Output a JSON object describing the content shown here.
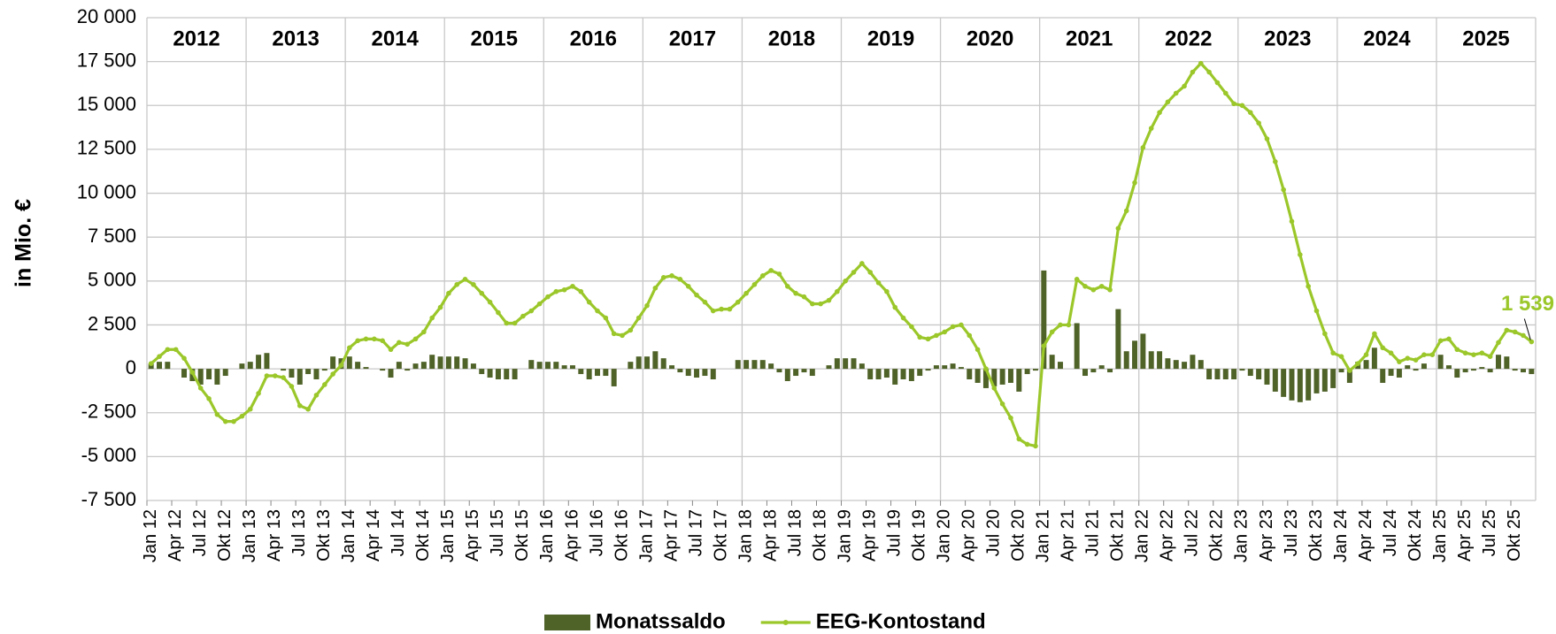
{
  "chart_data": {
    "type": "combo",
    "y_axis_label": "in Mio. €",
    "year_labels": [
      "2012",
      "2013",
      "2014",
      "2015",
      "2016",
      "2017",
      "2018",
      "2019",
      "2020",
      "2021",
      "2022",
      "2023",
      "2024",
      "2025"
    ],
    "categories": [
      "Jan 12",
      null,
      null,
      "Apr 12",
      null,
      null,
      "Jul 12",
      null,
      null,
      "Okt 12",
      null,
      null,
      "Jan 13",
      null,
      null,
      "Apr 13",
      null,
      null,
      "Jul 13",
      null,
      null,
      "Okt 13",
      null,
      null,
      "Jan 14",
      null,
      null,
      "Apr 14",
      null,
      null,
      "Jul 14",
      null,
      null,
      "Okt 14",
      null,
      null,
      "Jan 15",
      null,
      null,
      "Apr 15",
      null,
      null,
      "Jul 15",
      null,
      null,
      "Okt 15",
      null,
      null,
      "Jan 16",
      null,
      null,
      "Apr 16",
      null,
      null,
      "Jul 16",
      null,
      null,
      "Okt 16",
      null,
      null,
      "Jan 17",
      null,
      null,
      "Apr 17",
      null,
      null,
      "Jul 17",
      null,
      null,
      "Okt 17",
      null,
      null,
      "Jan 18",
      null,
      null,
      "Apr 18",
      null,
      null,
      "Jul 18",
      null,
      null,
      "Okt 18",
      null,
      null,
      "Jan 19",
      null,
      null,
      "Apr 19",
      null,
      null,
      "Jul 19",
      null,
      null,
      "Okt 19",
      null,
      null,
      "Jan 20",
      null,
      null,
      "Apr 20",
      null,
      null,
      "Jul 20",
      null,
      null,
      "Okt 20",
      null,
      null,
      "Jan 21",
      null,
      null,
      "Apr 21",
      null,
      null,
      "Jul 21",
      null,
      null,
      "Okt 21",
      null,
      null,
      "Jan 22",
      null,
      null,
      "Apr 22",
      null,
      null,
      "Jul 22",
      null,
      null,
      "Okt 22",
      null,
      null,
      "Jan 23",
      null,
      null,
      "Apr 23",
      null,
      null,
      "Jul 23",
      null,
      null,
      "Okt 23",
      null,
      null,
      "Jan 24",
      null,
      null,
      "Apr 24",
      null,
      null,
      "Jul 24",
      null,
      null,
      "Okt 24",
      null,
      null,
      "Jan 25",
      null,
      null,
      "Apr 25",
      null,
      null,
      "Jul 25",
      null,
      null,
      "Okt 25",
      null,
      null
    ],
    "series": [
      {
        "name": "Monatssaldo",
        "type": "bar",
        "color": "#4f6228",
        "values": [
          300,
          400,
          400,
          0,
          -500,
          -700,
          -900,
          -600,
          -900,
          -400,
          0,
          300,
          400,
          800,
          900,
          0,
          -100,
          -500,
          -900,
          -300,
          -600,
          -100,
          700,
          600,
          700,
          400,
          100,
          0,
          -100,
          -500,
          400,
          -100,
          300,
          400,
          800,
          700,
          700,
          700,
          600,
          300,
          -300,
          -500,
          -600,
          -600,
          -600,
          0,
          500,
          400,
          400,
          400,
          200,
          200,
          -300,
          -600,
          -400,
          -400,
          -1000,
          0,
          400,
          700,
          700,
          1000,
          600,
          200,
          -200,
          -400,
          -500,
          -400,
          -600,
          0,
          0,
          500,
          500,
          500,
          500,
          300,
          -200,
          -700,
          -400,
          -200,
          -400,
          0,
          200,
          600,
          600,
          600,
          300,
          -600,
          -600,
          -500,
          -900,
          -600,
          -700,
          -400,
          -100,
          200,
          200,
          300,
          100,
          -600,
          -800,
          -1100,
          -1000,
          -900,
          -800,
          -1300,
          -300,
          -100,
          5600,
          800,
          400,
          0,
          2600,
          -400,
          -200,
          200,
          -200,
          3400,
          1000,
          1600,
          2000,
          1000,
          1000,
          600,
          500,
          400,
          800,
          500,
          -600,
          -600,
          -600,
          -600,
          -100,
          -400,
          -600,
          -900,
          -1300,
          -1600,
          -1800,
          -1900,
          -1800,
          -1400,
          -1300,
          -1100,
          -200,
          -800,
          400,
          500,
          1200,
          -800,
          -400,
          -500,
          200,
          -100,
          300,
          0,
          800,
          200,
          -500,
          -200,
          -100,
          100,
          -200,
          800,
          700,
          -100,
          -200,
          -300
        ]
      },
      {
        "name": "EEG-Kontostand",
        "type": "line",
        "color": "#9bc72a",
        "values": [
          300,
          700,
          1100,
          1100,
          600,
          -200,
          -1100,
          -1700,
          -2600,
          -3000,
          -3000,
          -2700,
          -2300,
          -1400,
          -400,
          -400,
          -500,
          -1000,
          -2100,
          -2300,
          -1500,
          -900,
          -300,
          200,
          1200,
          1600,
          1700,
          1700,
          1600,
          1100,
          1500,
          1400,
          1700,
          2100,
          2900,
          3500,
          4300,
          4800,
          5100,
          4800,
          4300,
          3800,
          3200,
          2600,
          2600,
          3000,
          3300,
          3700,
          4100,
          4400,
          4500,
          4700,
          4400,
          3800,
          3300,
          2900,
          2000,
          1900,
          2200,
          2900,
          3600,
          4600,
          5200,
          5300,
          5100,
          4700,
          4200,
          3800,
          3300,
          3400,
          3400,
          3800,
          4300,
          4800,
          5300,
          5600,
          5400,
          4700,
          4300,
          4100,
          3700,
          3700,
          3900,
          4400,
          5000,
          5500,
          6000,
          5500,
          4900,
          4400,
          3500,
          2900,
          2400,
          1800,
          1700,
          1900,
          2100,
          2400,
          2500,
          1900,
          1100,
          0,
          -1100,
          -2000,
          -2800,
          -4000,
          -4300,
          -4400,
          1300,
          2100,
          2500,
          2500,
          5100,
          4700,
          4500,
          4700,
          4500,
          8000,
          9000,
          10600,
          12600,
          13700,
          14600,
          15200,
          15700,
          16100,
          16900,
          17400,
          16900,
          16300,
          15700,
          15100,
          15000,
          14600,
          14000,
          13100,
          11800,
          10200,
          8400,
          6500,
          4700,
          3300,
          2000,
          900,
          700,
          -100,
          300,
          800,
          2000,
          1200,
          900,
          400,
          600,
          500,
          800,
          800,
          1600,
          1700,
          1100,
          900,
          800,
          900,
          700,
          1500,
          2200,
          2100,
          1900,
          1539
        ],
        "value_labels": [
          null,
          null,
          null,
          null,
          null,
          null,
          null,
          null,
          null,
          null,
          null,
          null,
          null,
          null,
          null,
          null,
          null,
          null,
          null,
          null,
          null,
          null,
          null,
          null,
          null,
          null,
          null,
          null,
          null,
          null,
          null,
          null,
          null,
          null,
          null,
          null,
          null,
          null,
          null,
          null,
          null,
          null,
          null,
          null,
          null,
          null,
          null,
          null,
          null,
          null,
          null,
          null,
          null,
          null,
          null,
          null,
          null,
          null,
          null,
          null,
          null,
          null,
          null,
          null,
          null,
          null,
          null,
          null,
          null,
          null,
          null,
          null,
          null,
          null,
          null,
          null,
          null,
          null,
          null,
          null,
          null,
          null,
          null,
          null,
          null,
          null,
          null,
          null,
          null,
          null,
          null,
          null,
          null,
          null,
          null,
          null,
          null,
          null,
          null,
          null,
          null,
          null,
          null,
          null,
          null,
          null,
          null,
          null,
          null,
          null,
          null,
          null,
          null,
          null,
          null,
          null,
          null,
          null,
          null,
          null,
          null,
          null,
          null,
          null,
          null,
          null,
          null,
          null,
          null,
          null,
          null,
          null,
          null,
          null,
          null,
          null,
          null,
          null,
          null,
          null,
          null,
          null,
          null,
          null,
          null,
          null,
          null,
          null,
          null,
          null,
          null,
          null,
          null,
          null,
          null,
          null,
          null,
          null,
          null,
          null,
          null,
          null,
          null,
          null,
          null,
          null,
          null,
          "1 539"
        ]
      }
    ],
    "ylim": [
      -7500,
      20000
    ],
    "yticks": [
      {
        "value": -7500,
        "label": "-7 500"
      },
      {
        "value": -5000,
        "label": "-5 000"
      },
      {
        "value": -2500,
        "label": "-2 500"
      },
      0,
      {
        "value": 2500,
        "label": "2 500"
      },
      {
        "value": 5000,
        "label": "5 000"
      },
      {
        "value": 7500,
        "label": "7 500"
      },
      {
        "value": 10000,
        "label": "10 000"
      },
      {
        "value": 12500,
        "label": "12 500"
      },
      {
        "value": 15000,
        "label": "15 000"
      },
      {
        "value": 17500,
        "label": "17 500"
      },
      {
        "value": 20000,
        "label": "20 000"
      }
    ],
    "grid": true,
    "legend": "bottom"
  }
}
